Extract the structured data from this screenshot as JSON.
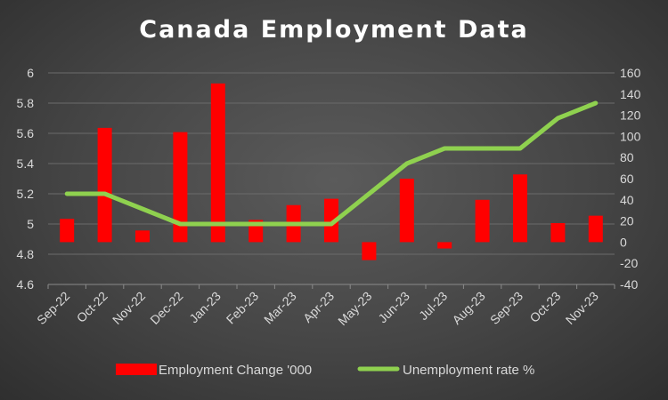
{
  "chart_data": {
    "type": "bar-line-combo",
    "title": "Canada Employment Data",
    "categories": [
      "Sep-22",
      "Oct-22",
      "Nov-22",
      "Dec-22",
      "Jan-23",
      "Feb-23",
      "Mar-23",
      "Apr-23",
      "May-23",
      "Jun-23",
      "Jul-23",
      "Aug-23",
      "Sep-23",
      "Oct-23",
      "Nov-23"
    ],
    "series": [
      {
        "name": "Employment Change '000",
        "type": "bar",
        "axis": "secondary",
        "color": "#ff0000",
        "values": [
          22,
          108,
          11,
          104,
          150,
          21,
          35,
          41,
          -17,
          60,
          -6,
          40,
          64,
          18,
          25
        ]
      },
      {
        "name": "Unemployment rate %",
        "type": "line",
        "axis": "primary",
        "color": "#8fd14f",
        "values": [
          5.2,
          5.2,
          5.1,
          5.0,
          5.0,
          5.0,
          5.0,
          5.0,
          5.2,
          5.4,
          5.5,
          5.5,
          5.5,
          5.7,
          5.8
        ]
      }
    ],
    "y_left": {
      "min": 4.6,
      "max": 6,
      "ticks": [
        "4.6",
        "4.8",
        "5",
        "5.2",
        "5.4",
        "5.6",
        "5.8",
        "6"
      ]
    },
    "y_right": {
      "min": -40,
      "max": 160,
      "ticks": [
        "-40",
        "-20",
        "0",
        "20",
        "40",
        "60",
        "80",
        "100",
        "120",
        "140",
        "160"
      ]
    },
    "grid": true,
    "legend": "bottom"
  }
}
